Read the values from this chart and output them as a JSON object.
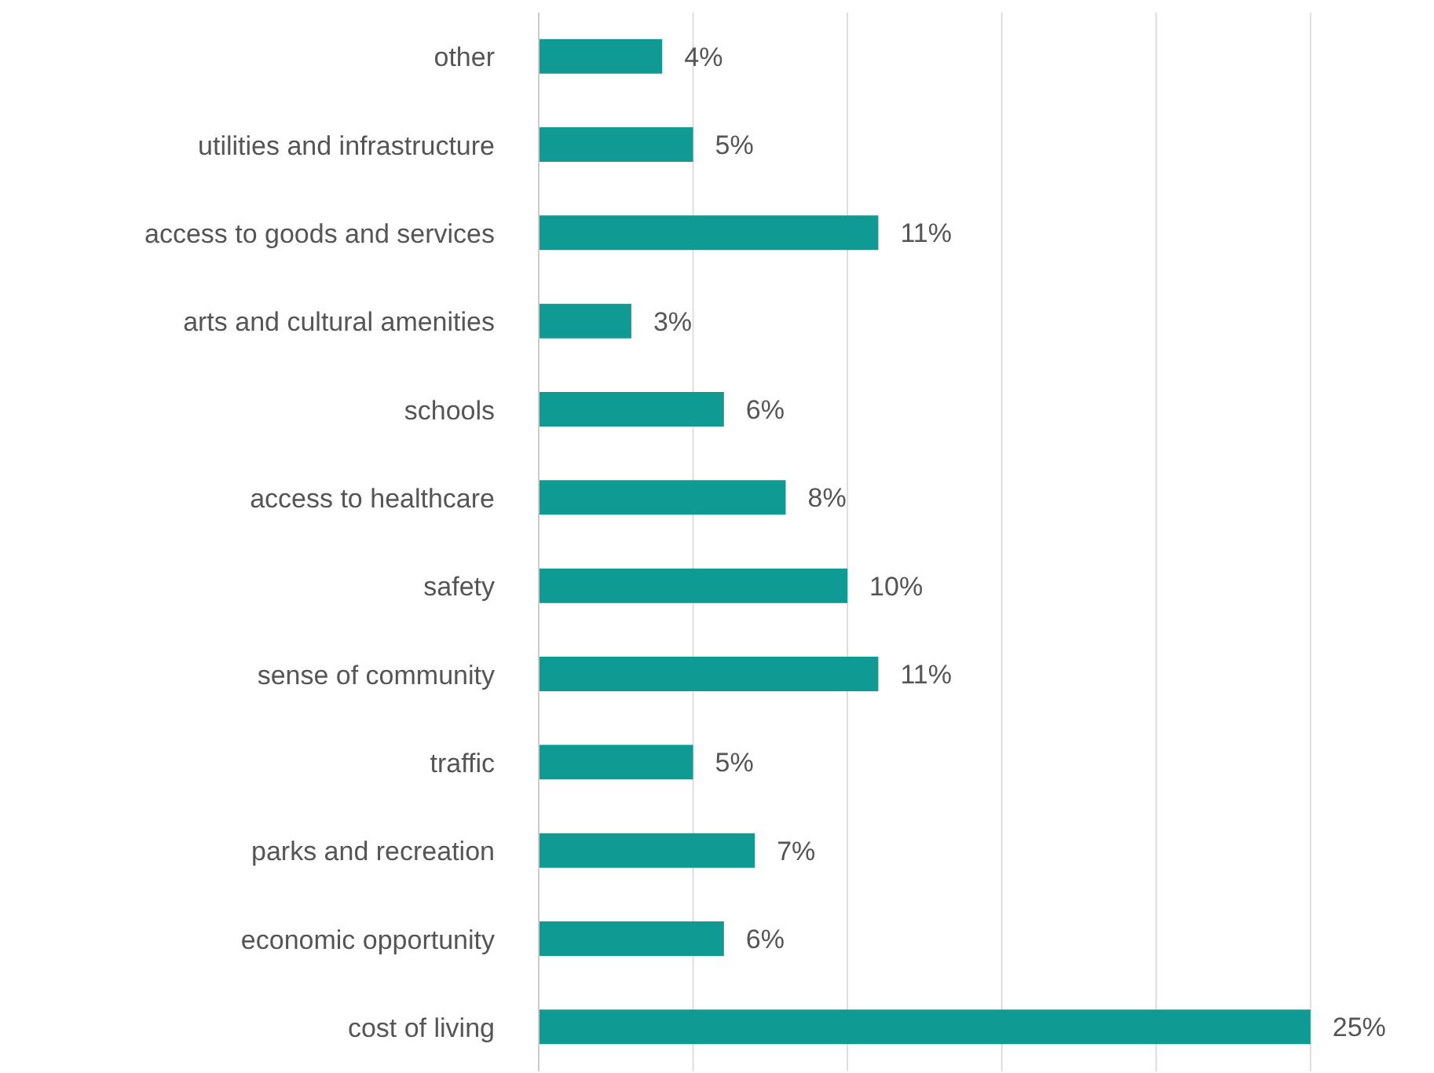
{
  "chart_data": {
    "type": "bar",
    "orientation": "horizontal",
    "categories": [
      "other",
      "utilities and infrastructure",
      "access to goods and services",
      "arts and cultural amenities",
      "schools",
      "access to healthcare",
      "safety",
      "sense of community",
      "traffic",
      "parks and recreation",
      "economic opportunity",
      "cost of living"
    ],
    "values": [
      4,
      5,
      11,
      3,
      6,
      8,
      10,
      11,
      5,
      7,
      6,
      25
    ],
    "color": "#0f9a94",
    "value_labels": [
      "4%",
      "5%",
      "11%",
      "3%",
      "6%",
      "8%",
      "10%",
      "11%",
      "5%",
      "7%",
      "6%",
      "25%"
    ],
    "grid": "x",
    "tick_labels": "y"
  }
}
